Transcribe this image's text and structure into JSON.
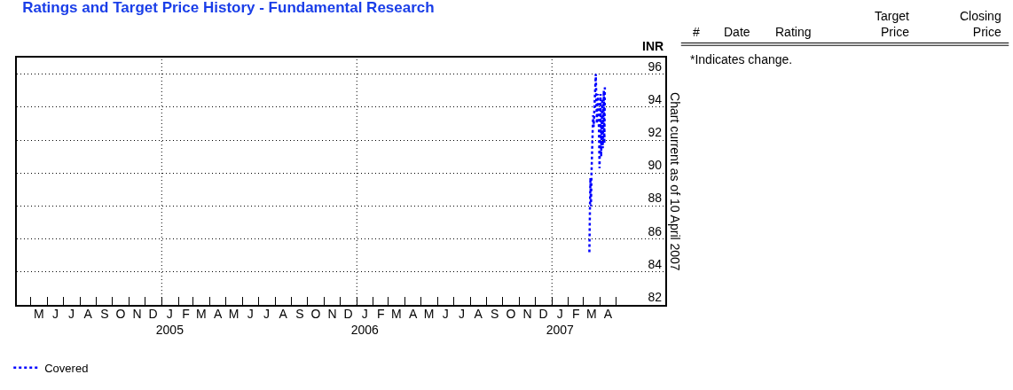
{
  "chart_data": {
    "type": "line",
    "title": "Ratings and Target Price History - Fundamental Research",
    "ylabel": "INR",
    "annotations": [
      "Chart current as of 10 April 2007",
      "#",
      "Date",
      "Rating",
      "Target\nPrice",
      "Closing\nPrice",
      "*Indicates change."
    ],
    "x": [
      "2007-03-12",
      "2007-03-13",
      "2007-03-14",
      "2007-03-15",
      "2007-03-16",
      "2007-03-19",
      "2007-03-20",
      "2007-03-24",
      "2007-03-26",
      "2007-03-28",
      "2007-03-30",
      "2007-03-31",
      "2007-04-02",
      "2007-04-03",
      "2007-04-05",
      "2007-04-06",
      "2007-04-08",
      "2007-04-09",
      "2007-04-10"
    ],
    "series": [
      {
        "name": "Covered",
        "color": "#0000ff",
        "values": [
          85.2,
          87.7,
          89.7,
          88.0,
          90.0,
          93.5,
          92.8,
          96.0,
          93.0,
          94.8,
          92.5,
          90.3,
          94.8,
          91.0,
          94.5,
          91.5,
          95.0,
          91.8,
          95.2
        ]
      }
    ],
    "line_style": "dotted",
    "marker": "none",
    "xlim": [
      "2004-04-05",
      "2007-08-01"
    ],
    "xticks": [
      {
        "value": "2004-05-01",
        "label": null
      },
      {
        "value": "2004-05-16",
        "label": "M"
      },
      {
        "value": "2004-06-01",
        "label": null
      },
      {
        "value": "2004-06-16",
        "label": "J"
      },
      {
        "value": "2004-07-01",
        "label": null
      },
      {
        "value": "2004-07-16",
        "label": "J"
      },
      {
        "value": "2004-08-01",
        "label": null
      },
      {
        "value": "2004-08-16",
        "label": "A"
      },
      {
        "value": "2004-09-01",
        "label": null
      },
      {
        "value": "2004-09-16",
        "label": "S"
      },
      {
        "value": "2004-10-01",
        "label": null
      },
      {
        "value": "2004-10-16",
        "label": "O"
      },
      {
        "value": "2004-11-01",
        "label": null
      },
      {
        "value": "2004-11-16",
        "label": "N"
      },
      {
        "value": "2004-12-01",
        "label": null
      },
      {
        "value": "2004-12-16",
        "label": "D"
      },
      {
        "value": "2005-01-01",
        "label": null
      },
      {
        "value": "2005-01-16",
        "label": "J\n2005"
      },
      {
        "value": "2005-02-01",
        "label": null
      },
      {
        "value": "2005-02-15",
        "label": "F"
      },
      {
        "value": "2005-03-01",
        "label": null
      },
      {
        "value": "2005-03-16",
        "label": "M"
      },
      {
        "value": "2005-04-01",
        "label": null
      },
      {
        "value": "2005-04-16",
        "label": "A"
      },
      {
        "value": "2005-05-01",
        "label": null
      },
      {
        "value": "2005-05-16",
        "label": "M"
      },
      {
        "value": "2005-06-01",
        "label": null
      },
      {
        "value": "2005-06-16",
        "label": "J"
      },
      {
        "value": "2005-07-01",
        "label": null
      },
      {
        "value": "2005-07-16",
        "label": "J"
      },
      {
        "value": "2005-08-01",
        "label": null
      },
      {
        "value": "2005-08-16",
        "label": "A"
      },
      {
        "value": "2005-09-01",
        "label": null
      },
      {
        "value": "2005-09-16",
        "label": "S"
      },
      {
        "value": "2005-10-01",
        "label": null
      },
      {
        "value": "2005-10-16",
        "label": "O"
      },
      {
        "value": "2005-11-01",
        "label": null
      },
      {
        "value": "2005-11-16",
        "label": "N"
      },
      {
        "value": "2005-12-01",
        "label": null
      },
      {
        "value": "2005-12-16",
        "label": "D"
      },
      {
        "value": "2006-01-01",
        "label": null
      },
      {
        "value": "2006-01-16",
        "label": "J\n2006"
      },
      {
        "value": "2006-02-01",
        "label": null
      },
      {
        "value": "2006-02-15",
        "label": "F"
      },
      {
        "value": "2006-03-01",
        "label": null
      },
      {
        "value": "2006-03-16",
        "label": "M"
      },
      {
        "value": "2006-04-01",
        "label": null
      },
      {
        "value": "2006-04-16",
        "label": "A"
      },
      {
        "value": "2006-05-01",
        "label": null
      },
      {
        "value": "2006-05-16",
        "label": "M"
      },
      {
        "value": "2006-06-01",
        "label": null
      },
      {
        "value": "2006-06-16",
        "label": "J"
      },
      {
        "value": "2006-07-01",
        "label": null
      },
      {
        "value": "2006-07-16",
        "label": "J"
      },
      {
        "value": "2006-08-01",
        "label": null
      },
      {
        "value": "2006-08-16",
        "label": "A"
      },
      {
        "value": "2006-09-01",
        "label": null
      },
      {
        "value": "2006-09-16",
        "label": "S"
      },
      {
        "value": "2006-10-01",
        "label": null
      },
      {
        "value": "2006-10-16",
        "label": "O"
      },
      {
        "value": "2006-11-01",
        "label": null
      },
      {
        "value": "2006-11-16",
        "label": "N"
      },
      {
        "value": "2006-12-01",
        "label": null
      },
      {
        "value": "2006-12-16",
        "label": "D"
      },
      {
        "value": "2007-01-01",
        "label": null
      },
      {
        "value": "2007-01-16",
        "label": "J\n2007"
      },
      {
        "value": "2007-02-01",
        "label": null
      },
      {
        "value": "2007-02-15",
        "label": "F"
      },
      {
        "value": "2007-03-01",
        "label": null
      },
      {
        "value": "2007-03-16",
        "label": "M"
      },
      {
        "value": "2007-04-01",
        "label": null
      },
      {
        "value": "2007-04-16",
        "label": "A"
      },
      {
        "value": "2007-05-01",
        "label": null
      }
    ],
    "ylim": [
      82,
      97
    ],
    "yticks": [
      82,
      84,
      86,
      88,
      90,
      92,
      94,
      96
    ],
    "grid": "y",
    "ref_lines": [
      {
        "axis": "x",
        "value": "2005-01-01",
        "label": null,
        "color": "#000000",
        "line_style": "dotted"
      },
      {
        "axis": "x",
        "value": "2006-01-01",
        "label": null,
        "color": "#000000",
        "line_style": "dotted"
      },
      {
        "axis": "x",
        "value": "2007-01-01",
        "label": null,
        "color": "#000000",
        "line_style": "dotted"
      }
    ],
    "legend": "bottom left"
  }
}
